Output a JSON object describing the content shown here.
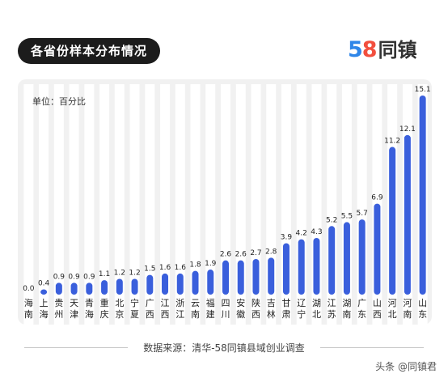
{
  "header": {
    "title": "各省份样本分布情况",
    "logo_digits": "58",
    "logo_text": "同镇"
  },
  "footer": {
    "source": "数据来源：清华-58同镇县域创业调查",
    "watermark": "头条 @同镇君"
  },
  "colors": {
    "bar": "#3a5fdc",
    "stripe": "#ffffff"
  },
  "chart_data": {
    "type": "bar",
    "unit_label": "单位：百分比",
    "categories": [
      "海南",
      "上海",
      "贵州",
      "天津",
      "青海",
      "重庆",
      "北京",
      "宁夏",
      "广西",
      "江西",
      "浙江",
      "云南",
      "福建",
      "四川",
      "安徽",
      "陕西",
      "吉林",
      "甘肃",
      "辽宁",
      "湖北",
      "江苏",
      "湖南",
      "广东",
      "山西",
      "河北",
      "河南",
      "山东"
    ],
    "values": [
      0.0,
      0.4,
      0.9,
      0.9,
      0.9,
      1.1,
      1.2,
      1.2,
      1.5,
      1.6,
      1.6,
      1.8,
      1.9,
      2.6,
      2.6,
      2.7,
      2.8,
      3.9,
      4.2,
      4.3,
      5.2,
      5.5,
      5.7,
      6.9,
      11.2,
      12.1,
      15.1
    ],
    "value_labels": [
      "0.0",
      "0.4",
      "0.9",
      "0.9",
      "0.9",
      "1.1",
      "1.2",
      "1.2",
      "1.5",
      "1.6",
      "1.6",
      "1.8",
      "1.9",
      "2.6",
      "2.6",
      "2.7",
      "2.8",
      "3.9",
      "4.2",
      "4.3",
      "5.2",
      "5.5",
      "5.7",
      "6.9",
      "11.2",
      "12.1",
      "15.1"
    ],
    "ylim": [
      0,
      15.1
    ],
    "grid": false,
    "legend": "none"
  }
}
